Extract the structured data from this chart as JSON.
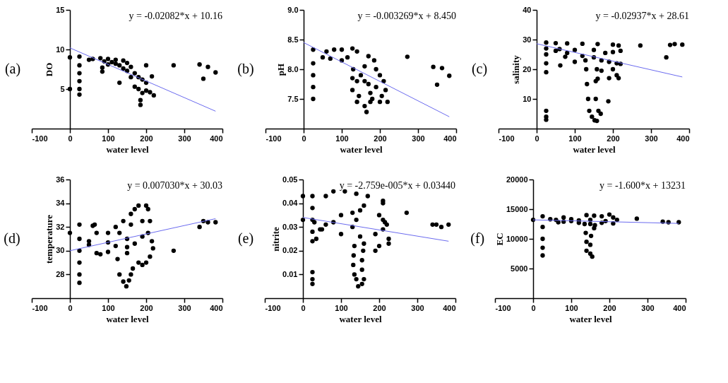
{
  "chart_data": [
    {
      "type": "scatter",
      "title": "(a)",
      "xlabel": "water level",
      "ylabel": "DO",
      "xlim": [
        -100,
        400
      ],
      "xticks": [
        -100,
        0,
        100,
        200,
        300,
        400
      ],
      "ylim": [
        0,
        15
      ],
      "yticks": [
        5,
        10,
        15
      ],
      "grid": false,
      "annotations": [
        "y = -0.02082*x + 10.16"
      ],
      "series": [
        {
          "marker": "circle",
          "color": "#000000",
          "x": [
            25,
            25,
            25,
            25,
            25,
            25,
            0,
            0,
            50,
            60,
            80,
            100,
            120,
            140,
            150,
            160,
            170,
            180,
            190,
            200,
            210,
            220,
            190,
            170,
            160,
            150,
            140,
            130,
            100,
            85,
            85,
            130,
            185,
            185,
            200,
            215,
            90,
            110,
            120,
            200,
            180,
            272,
            340,
            350,
            362,
            382
          ],
          "values": [
            9.1,
            8,
            7,
            6,
            5,
            4.3,
            9,
            5,
            8.7,
            8.8,
            8.9,
            8.8,
            8.7,
            8.6,
            8.3,
            7.8,
            7.0,
            6.5,
            6.2,
            5.8,
            4.6,
            4.2,
            4.5,
            5.3,
            6.5,
            7.3,
            7.6,
            8.0,
            8.1,
            7.7,
            7.2,
            5.8,
            3.0,
            3.6,
            8.0,
            6.6,
            8.5,
            8.4,
            8.2,
            4.8,
            5.0,
            8.0,
            8.1,
            6.3,
            7.8,
            7.1
          ]
        },
        {
          "type": "line",
          "color": "#6b6bef",
          "x": [
            0,
            382
          ],
          "values": [
            10.2,
            2.2
          ]
        }
      ]
    },
    {
      "type": "scatter",
      "title": "(b)",
      "xlabel": "water level",
      "ylabel": "pH",
      "xlim": [
        -100,
        400
      ],
      "xticks": [
        -100,
        0,
        100,
        200,
        300,
        400
      ],
      "ylim": [
        7,
        9
      ],
      "yticks": [
        7.5,
        {
          "value": 8,
          "label": "8.0"
        },
        8.5,
        {
          "value": 9,
          "label": "9.0"
        }
      ],
      "grid": false,
      "annotations": [
        "y = -0.003269*x + 8.450"
      ],
      "series": [
        {
          "marker": "circle",
          "color": "#000000",
          "x": [
            25,
            25,
            25,
            25,
            25,
            50,
            60,
            80,
            100,
            128,
            140,
            170,
            185,
            190,
            200,
            210,
            215,
            220,
            200,
            180,
            175,
            170,
            160,
            150,
            140,
            145,
            140,
            165,
            160,
            130,
            100,
            70,
            128,
            128,
            175,
            205,
            115,
            160,
            190,
            272,
            340,
            350,
            363,
            382
          ],
          "values": [
            8.33,
            8.1,
            7.9,
            7.7,
            7.5,
            8.2,
            8.3,
            8.33,
            8.33,
            8.35,
            8.3,
            8.22,
            8.15,
            8.0,
            7.9,
            7.8,
            7.65,
            7.45,
            7.45,
            7.5,
            7.6,
            7.75,
            7.8,
            7.9,
            7.8,
            7.55,
            7.45,
            7.28,
            7.38,
            8.0,
            8.15,
            8.18,
            7.65,
            7.85,
            7.45,
            7.55,
            8.2,
            8.05,
            7.7,
            8.21,
            8.04,
            7.74,
            8.02,
            7.89
          ]
        },
        {
          "type": "line",
          "color": "#6b6bef",
          "x": [
            0,
            382
          ],
          "values": [
            8.45,
            7.2
          ]
        }
      ]
    },
    {
      "type": "scatter",
      "title": "(c)",
      "xlabel": "water level",
      "ylabel": "salinity",
      "xlim": [
        -100,
        400
      ],
      "xticks": [
        -100,
        0,
        100,
        200,
        300,
        400
      ],
      "ylim": [
        0,
        40
      ],
      "yticks": [
        10,
        20,
        30,
        40
      ],
      "grid": false,
      "annotations": [
        "y = -0.02937*x + 28.61"
      ],
      "series": [
        {
          "marker": "circle",
          "color": "#000000",
          "x": [
            25,
            25,
            25,
            25,
            25,
            25,
            25,
            25,
            50,
            80,
            120,
            160,
            200,
            215,
            220,
            200,
            180,
            150,
            100,
            60,
            50,
            80,
            120,
            150,
            170,
            190,
            210,
            220,
            200,
            210,
            190,
            160,
            170,
            215,
            75,
            62,
            100,
            128,
            130,
            132,
            135,
            138,
            145,
            152,
            158,
            162,
            168,
            155,
            155,
            158,
            188,
            272,
            340,
            350,
            362,
            382
          ],
          "values": [
            29,
            27,
            25,
            22,
            19,
            6,
            4,
            3,
            28.8,
            28.7,
            28.6,
            28.5,
            28.3,
            28,
            26.2,
            25.8,
            25.5,
            26.5,
            26.5,
            26.8,
            26.2,
            25.5,
            24.5,
            24,
            23,
            22.5,
            22,
            21.8,
            20,
            18,
            17,
            16.8,
            19.5,
            17,
            24.2,
            21.3,
            22.5,
            23,
            20,
            15,
            10,
            6,
            4,
            2.8,
            2.6,
            6,
            5,
            10,
            16,
            20,
            9.2,
            28,
            24,
            28.2,
            28.5,
            28.3
          ]
        },
        {
          "type": "line",
          "color": "#6b6bef",
          "x": [
            0,
            382
          ],
          "values": [
            28.6,
            17.4
          ]
        }
      ]
    },
    {
      "type": "scatter",
      "title": "(d)",
      "xlabel": "water level",
      "ylabel": "temperature",
      "xlim": [
        -100,
        400
      ],
      "xticks": [
        -100,
        0,
        100,
        200,
        300,
        400
      ],
      "ylim": [
        26,
        36
      ],
      "yticks": [
        28,
        30,
        32,
        34,
        36
      ],
      "grid": false,
      "annotations": [
        "y = 0.007030*x + 30.03"
      ],
      "series": [
        {
          "marker": "circle",
          "color": "#000000",
          "x": [
            25,
            25,
            25,
            25,
            25,
            25,
            0,
            50,
            50,
            60,
            65,
            70,
            80,
            70,
            100,
            120,
            140,
            160,
            170,
            180,
            200,
            205,
            210,
            205,
            215,
            218,
            210,
            200,
            190,
            180,
            165,
            160,
            155,
            148,
            140,
            130,
            125,
            150,
            100,
            120,
            150,
            100,
            150,
            190,
            190,
            160,
            130,
            170,
            272,
            340,
            350,
            362,
            382
          ],
          "values": [
            32.2,
            31,
            30,
            29,
            28,
            27.3,
            31.5,
            30.5,
            30.8,
            32.1,
            32.2,
            29.8,
            29.7,
            31.5,
            31.5,
            32.0,
            32.5,
            33.1,
            33.5,
            33.8,
            33.8,
            33.5,
            32.5,
            31.5,
            30.8,
            30.2,
            29.5,
            29.0,
            28.8,
            29.0,
            28.5,
            28.0,
            27.5,
            27.0,
            27.4,
            28.0,
            29.3,
            29.8,
            29.9,
            30.4,
            30.3,
            30.7,
            31.0,
            31.2,
            32.5,
            32.2,
            31.5,
            30.6,
            30.0,
            32.0,
            32.5,
            32.4,
            32.4
          ]
        },
        {
          "type": "line",
          "color": "#6b6bef",
          "x": [
            0,
            382
          ],
          "values": [
            30.0,
            32.7
          ]
        }
      ]
    },
    {
      "type": "scatter",
      "title": "(e)",
      "xlabel": "water level",
      "ylabel": "nitrite",
      "xlim": [
        -100,
        400
      ],
      "xticks": [
        -100,
        0,
        100,
        200,
        300,
        400
      ],
      "ylim": [
        0,
        0.05
      ],
      "yticks": [
        0.01,
        0.02,
        0.03,
        0.04,
        0.05
      ],
      "grid": false,
      "annotations": [
        "y = -2.759e-005*x + 0.03440"
      ],
      "series": [
        {
          "marker": "circle",
          "color": "#000000",
          "x": [
            25,
            25,
            25,
            25,
            25,
            25,
            25,
            25,
            0,
            0,
            30,
            35,
            60,
            80,
            110,
            140,
            170,
            210,
            210,
            160,
            150,
            130,
            100,
            200,
            210,
            215,
            220,
            210,
            190,
            225,
            225,
            200,
            190,
            150,
            100,
            50,
            45,
            60,
            80,
            130,
            140,
            135,
            133,
            132,
            135,
            140,
            145,
            155,
            160,
            155,
            155,
            158,
            160,
            272,
            340,
            350,
            363,
            382
          ],
          "values": [
            0.043,
            0.038,
            0.033,
            0.028,
            0.024,
            0.011,
            0.008,
            0.006,
            0.043,
            0.033,
            0.032,
            0.025,
            0.043,
            0.045,
            0.045,
            0.044,
            0.043,
            0.041,
            0.04,
            0.039,
            0.037,
            0.036,
            0.035,
            0.035,
            0.033,
            0.032,
            0.031,
            0.029,
            0.027,
            0.025,
            0.023,
            0.022,
            0.02,
            0.026,
            0.027,
            0.029,
            0.029,
            0.031,
            0.032,
            0.03,
            0.033,
            0.022,
            0.018,
            0.014,
            0.01,
            0.008,
            0.005,
            0.006,
            0.008,
            0.012,
            0.016,
            0.02,
            0.023,
            0.036,
            0.031,
            0.031,
            0.03,
            0.031
          ]
        },
        {
          "type": "line",
          "color": "#6b6bef",
          "x": [
            0,
            382
          ],
          "values": [
            0.034,
            0.024
          ]
        }
      ]
    },
    {
      "type": "scatter",
      "title": "(f)",
      "xlabel": "water level",
      "ylabel": "EC",
      "xlim": [
        -100,
        400
      ],
      "xticks": [
        -100,
        0,
        100,
        200,
        300,
        400
      ],
      "ylim": [
        0,
        20000
      ],
      "yticks": [
        5000,
        10000,
        15000,
        20000
      ],
      "grid": false,
      "annotations": [
        "y = -1.600*x + 13231"
      ],
      "series": [
        {
          "marker": "circle",
          "color": "#000000",
          "x": [
            25,
            25,
            25,
            25,
            25,
            0,
            45,
            60,
            80,
            100,
            120,
            140,
            160,
            180,
            200,
            210,
            220,
            210,
            180,
            150,
            120,
            80,
            66,
            150,
            135,
            138,
            140,
            140,
            150,
            155,
            150,
            152,
            160,
            162,
            100,
            190,
            272,
            340,
            355,
            382
          ],
          "values": [
            13800,
            12000,
            10000,
            8500,
            7200,
            13200,
            13300,
            13200,
            13600,
            13300,
            13100,
            14000,
            13900,
            13800,
            14100,
            13600,
            13200,
            12600,
            12700,
            12500,
            12700,
            12900,
            12800,
            13200,
            12500,
            11000,
            9500,
            8000,
            7500,
            7000,
            9000,
            10500,
            11800,
            12300,
            13000,
            13000,
            13400,
            12900,
            12800,
            12800
          ]
        },
        {
          "type": "line",
          "color": "#6b6bef",
          "x": [
            0,
            382
          ],
          "values": [
            13200,
            12600
          ]
        }
      ]
    }
  ]
}
